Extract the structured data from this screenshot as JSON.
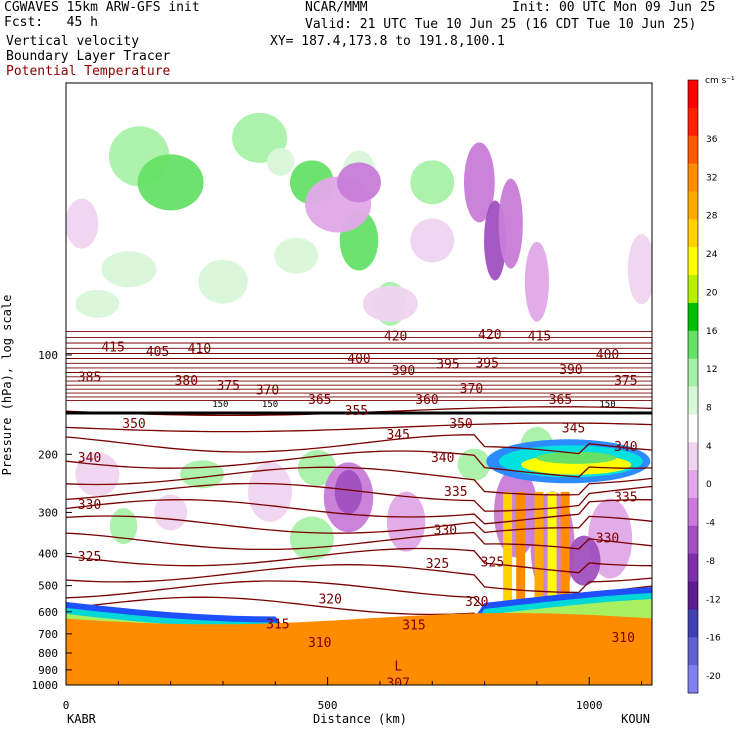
{
  "header": {
    "model": "CGWAVES 15km ARW-GFS init",
    "forecast": "Fcst:   45 h",
    "field1": "Vertical velocity",
    "field2": "Boundary Layer Tracer",
    "field3": "Potential Temperature",
    "organization": "NCAR/MMM",
    "init_time": "Init: 00 UTC Mon 09 Jun 25",
    "valid_time": "Valid: 21 UTC Tue 10 Jun 25 (16 CDT Tue 10 Jun 25)",
    "cross_section": "XY= 187.4,173.8 to 191.8,100.1"
  },
  "colors": {
    "theta_contour": "#7a0000",
    "terrain": "#ff8c00",
    "positive_shades": [
      "#ffffff",
      "#d9f7d9",
      "#a8f0a8",
      "#66e066",
      "#00c000",
      "#b8f000",
      "#ffff00",
      "#ffd200",
      "#ffaa00",
      "#ff8c00",
      "#ff5a00",
      "#ff2000"
    ],
    "negative_shades": [
      "#f0d4f0",
      "#e0a8e8",
      "#c87cd8",
      "#a050c0",
      "#7c30a8",
      "#5a1c8c",
      "#6060d0",
      "#8080f0"
    ]
  },
  "chart_data": {
    "type": "heatmap",
    "title": "Vertical velocity / Boundary Layer Tracer / Potential Temperature",
    "xlabel": "Distance (km)",
    "ylabel": "Pressure (hPa), log scale",
    "xlim": [
      0,
      1120
    ],
    "ylim": [
      1000,
      15
    ],
    "y_scale": "log",
    "x_ticks": [
      0,
      500,
      1000
    ],
    "y_ticks": [
      100,
      200,
      300,
      400,
      500,
      600,
      700,
      800,
      900,
      1000
    ],
    "endpoints": {
      "left": "KABR",
      "right": "KOUN"
    },
    "colorbar": {
      "unit": "cm s⁻¹",
      "ticks": [
        36,
        32,
        28,
        24,
        20,
        16,
        12,
        8,
        4,
        0,
        -4,
        -8,
        -12,
        -16,
        -20
      ]
    },
    "theta_labels": [
      {
        "text": "415",
        "x": 90,
        "p": 95
      },
      {
        "text": "405",
        "x": 175,
        "p": 98
      },
      {
        "text": "410",
        "x": 255,
        "p": 96
      },
      {
        "text": "420",
        "x": 630,
        "p": 88
      },
      {
        "text": "420",
        "x": 810,
        "p": 87
      },
      {
        "text": "415",
        "x": 905,
        "p": 88
      },
      {
        "text": "400",
        "x": 560,
        "p": 103
      },
      {
        "text": "400",
        "x": 1035,
        "p": 100
      },
      {
        "text": "385",
        "x": 45,
        "p": 117
      },
      {
        "text": "380",
        "x": 230,
        "p": 120
      },
      {
        "text": "375",
        "x": 310,
        "p": 124
      },
      {
        "text": "390",
        "x": 645,
        "p": 112
      },
      {
        "text": "395",
        "x": 730,
        "p": 107
      },
      {
        "text": "395",
        "x": 805,
        "p": 106
      },
      {
        "text": "390",
        "x": 965,
        "p": 111
      },
      {
        "text": "370",
        "x": 385,
        "p": 128
      },
      {
        "text": "370",
        "x": 775,
        "p": 127
      },
      {
        "text": "375",
        "x": 1070,
        "p": 120
      },
      {
        "text": "365",
        "x": 485,
        "p": 137
      },
      {
        "text": "360",
        "x": 690,
        "p": 137
      },
      {
        "text": "365",
        "x": 945,
        "p": 137
      },
      {
        "text": "150",
        "x": 295,
        "p": 140
      },
      {
        "text": "150",
        "x": 390,
        "p": 140
      },
      {
        "text": "150",
        "x": 1035,
        "p": 140
      },
      {
        "text": "355",
        "x": 555,
        "p": 148
      },
      {
        "text": "350",
        "x": 130,
        "p": 162
      },
      {
        "text": "350",
        "x": 755,
        "p": 162
      },
      {
        "text": "345",
        "x": 635,
        "p": 175
      },
      {
        "text": "345",
        "x": 970,
        "p": 167
      },
      {
        "text": "340",
        "x": 45,
        "p": 205
      },
      {
        "text": "340",
        "x": 720,
        "p": 205
      },
      {
        "text": "340",
        "x": 1070,
        "p": 190
      },
      {
        "text": "335",
        "x": 745,
        "p": 260
      },
      {
        "text": "335",
        "x": 1070,
        "p": 270
      },
      {
        "text": "330",
        "x": 45,
        "p": 285
      },
      {
        "text": "330",
        "x": 725,
        "p": 340
      },
      {
        "text": "330",
        "x": 1035,
        "p": 360
      },
      {
        "text": "325",
        "x": 45,
        "p": 410
      },
      {
        "text": "325",
        "x": 710,
        "p": 430
      },
      {
        "text": "325",
        "x": 815,
        "p": 425
      },
      {
        "text": "320",
        "x": 505,
        "p": 550
      },
      {
        "text": "320",
        "x": 785,
        "p": 560
      },
      {
        "text": "315",
        "x": 405,
        "p": 655
      },
      {
        "text": "315",
        "x": 665,
        "p": 660
      },
      {
        "text": "310",
        "x": 485,
        "p": 745
      },
      {
        "text": "310",
        "x": 1065,
        "p": 720
      },
      {
        "text": "307",
        "x": 635,
        "p": 990
      }
    ],
    "low_marker": {
      "text": "L",
      "x": 635,
      "p": 880
    }
  }
}
